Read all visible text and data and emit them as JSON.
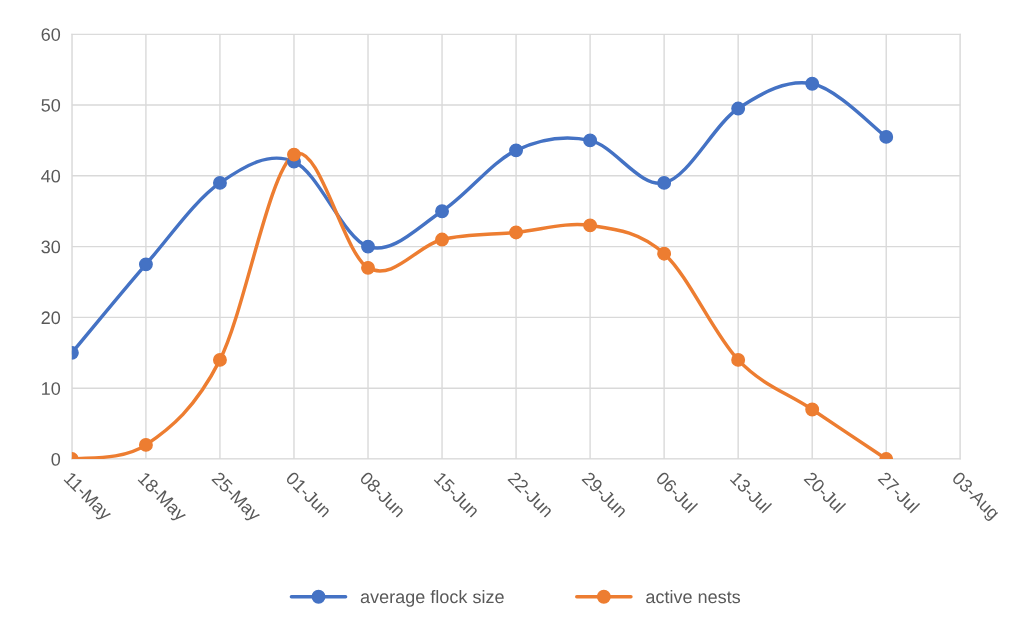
{
  "chart_data": {
    "type": "line",
    "categories": [
      "11-May",
      "18-May",
      "25-May",
      "01-Jun",
      "08-Jun",
      "15-Jun",
      "22-Jun",
      "29-Jun",
      "06-Jul",
      "13-Jul",
      "20-Jul",
      "27-Jul",
      "03-Aug"
    ],
    "series": [
      {
        "name": "average flock size",
        "color": "#4472c4",
        "values": [
          15,
          27.5,
          39,
          42,
          30,
          35,
          43.6,
          45,
          39,
          49.5,
          53,
          45.5,
          null
        ]
      },
      {
        "name": "active nests",
        "color": "#ed7d31",
        "values": [
          0,
          2,
          14,
          43,
          27,
          31,
          32,
          33,
          29,
          14,
          7,
          0,
          null
        ]
      }
    ],
    "ylim": [
      0,
      60
    ],
    "yticks": [
      0,
      10,
      20,
      30,
      40,
      50,
      60
    ],
    "grid": true,
    "legend": "bottom",
    "marker": "circle",
    "line_style": "solid"
  }
}
